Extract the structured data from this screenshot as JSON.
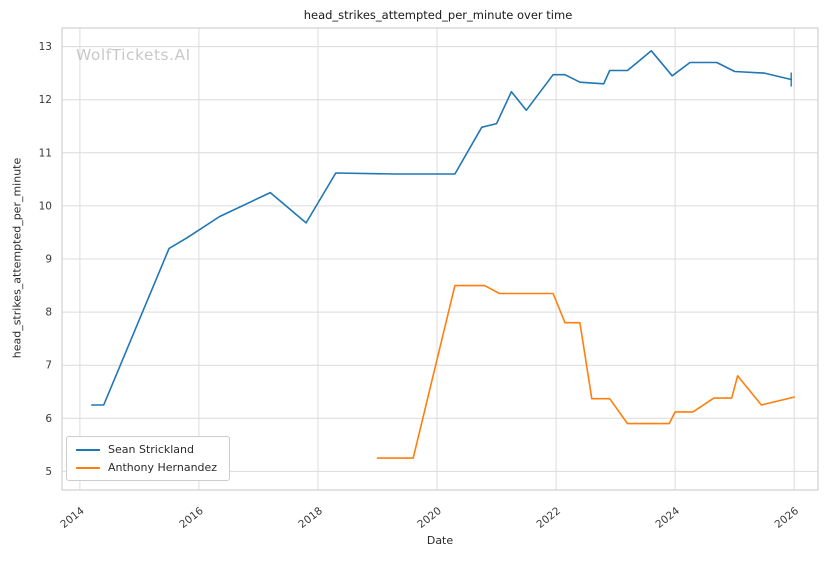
{
  "watermark": "WolfTickets.AI",
  "chart_data": {
    "type": "line",
    "title": "head_strikes_attempted_per_minute over time",
    "xlabel": "Date",
    "ylabel": "head_strikes_attempted_per_minute",
    "xlim": [
      2013.7,
      2026.4
    ],
    "ylim": [
      4.65,
      13.35
    ],
    "xticks": [
      2014,
      2016,
      2018,
      2020,
      2022,
      2024,
      2026
    ],
    "yticks": [
      5,
      6,
      7,
      8,
      9,
      10,
      11,
      12,
      13
    ],
    "grid": true,
    "grid_color": "#dcdcdc",
    "legend_position": "lower-left",
    "series": [
      {
        "name": "Sean Strickland",
        "color": "#1f77b4",
        "end_tick": true,
        "points": [
          [
            2014.2,
            6.25
          ],
          [
            2014.4,
            6.25
          ],
          [
            2015.5,
            9.2
          ],
          [
            2015.8,
            9.4
          ],
          [
            2016.35,
            9.8
          ],
          [
            2017.2,
            10.25
          ],
          [
            2017.8,
            9.68
          ],
          [
            2018.3,
            10.62
          ],
          [
            2019.3,
            10.6
          ],
          [
            2020.3,
            10.6
          ],
          [
            2020.75,
            11.48
          ],
          [
            2021.0,
            11.55
          ],
          [
            2021.25,
            12.15
          ],
          [
            2021.5,
            11.8
          ],
          [
            2021.95,
            12.47
          ],
          [
            2022.15,
            12.47
          ],
          [
            2022.4,
            12.33
          ],
          [
            2022.8,
            12.3
          ],
          [
            2022.9,
            12.55
          ],
          [
            2023.2,
            12.55
          ],
          [
            2023.6,
            12.92
          ],
          [
            2023.95,
            12.45
          ],
          [
            2024.25,
            12.7
          ],
          [
            2024.7,
            12.7
          ],
          [
            2025.0,
            12.53
          ],
          [
            2025.5,
            12.5
          ],
          [
            2025.95,
            12.38
          ]
        ]
      },
      {
        "name": "Anthony Hernandez",
        "color": "#ff7f0e",
        "end_tick": false,
        "points": [
          [
            2019.0,
            5.25
          ],
          [
            2019.6,
            5.25
          ],
          [
            2020.3,
            8.5
          ],
          [
            2020.8,
            8.5
          ],
          [
            2021.05,
            8.35
          ],
          [
            2021.95,
            8.35
          ],
          [
            2022.15,
            7.8
          ],
          [
            2022.4,
            7.8
          ],
          [
            2022.6,
            6.37
          ],
          [
            2022.9,
            6.37
          ],
          [
            2023.2,
            5.9
          ],
          [
            2023.9,
            5.9
          ],
          [
            2024.0,
            6.12
          ],
          [
            2024.3,
            6.12
          ],
          [
            2024.65,
            6.38
          ],
          [
            2024.95,
            6.38
          ],
          [
            2025.05,
            6.8
          ],
          [
            2025.45,
            6.25
          ],
          [
            2026.0,
            6.4
          ]
        ]
      }
    ]
  }
}
